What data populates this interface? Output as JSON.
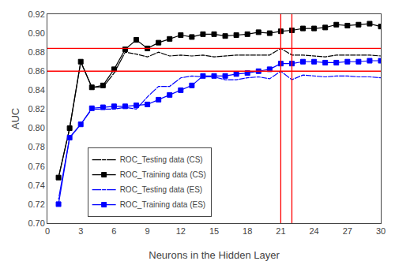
{
  "chart_data": {
    "type": "line",
    "x_label": "Neurons in the Hidden Layer",
    "y_label": "AUC",
    "x": [
      1,
      2,
      3,
      4,
      5,
      6,
      7,
      8,
      9,
      10,
      11,
      12,
      13,
      14,
      15,
      16,
      17,
      18,
      19,
      20,
      21,
      22,
      23,
      24,
      25,
      26,
      27,
      28,
      29,
      30
    ],
    "series": [
      {
        "name": "ROC_Testing data (CS)",
        "color": "#000000",
        "marker": "square-open",
        "line_style": "solid",
        "values": [
          0.748,
          0.8,
          0.87,
          0.843,
          0.843,
          0.858,
          0.88,
          0.878,
          0.875,
          0.88,
          0.876,
          0.877,
          0.876,
          0.877,
          0.875,
          0.876,
          0.877,
          0.877,
          0.877,
          0.877,
          0.884,
          0.877,
          0.877,
          0.876,
          0.875,
          0.877,
          0.877,
          0.877,
          0.877,
          0.876
        ]
      },
      {
        "name": "ROC_Training data (CS)",
        "color": "#000000",
        "marker": "square",
        "line_style": "solid",
        "values": [
          0.748,
          0.8,
          0.87,
          0.843,
          0.845,
          0.862,
          0.883,
          0.893,
          0.884,
          0.89,
          0.894,
          0.898,
          0.896,
          0.899,
          0.899,
          0.897,
          0.898,
          0.899,
          0.901,
          0.9,
          0.902,
          0.903,
          0.905,
          0.905,
          0.906,
          0.909,
          0.908,
          0.909,
          0.91,
          0.907
        ]
      },
      {
        "name": "ROC_Testing data (ES)",
        "color": "#0000FF",
        "marker": "square-open",
        "line_style": "solid",
        "values": [
          0.725,
          0.79,
          0.804,
          0.82,
          0.82,
          0.82,
          0.822,
          0.82,
          0.833,
          0.844,
          0.844,
          0.853,
          0.855,
          0.854,
          0.854,
          0.851,
          0.851,
          0.853,
          0.854,
          0.852,
          0.86,
          0.851,
          0.856,
          0.855,
          0.854,
          0.855,
          0.855,
          0.854,
          0.854,
          0.853
        ]
      },
      {
        "name": "ROC_Training data (ES)",
        "color": "#0000FF",
        "marker": "square",
        "line_style": "solid",
        "values": [
          0.72,
          0.79,
          0.804,
          0.821,
          0.822,
          0.823,
          0.823,
          0.824,
          0.825,
          0.83,
          0.835,
          0.84,
          0.845,
          0.855,
          0.855,
          0.855,
          0.857,
          0.858,
          0.86,
          0.862,
          0.868,
          0.868,
          0.87,
          0.87,
          0.869,
          0.869,
          0.87,
          0.87,
          0.871,
          0.871
        ]
      }
    ],
    "reference_lines": [
      {
        "axis": "y",
        "value": 0.884,
        "color": "#FF0000"
      },
      {
        "axis": "y",
        "value": 0.86,
        "color": "#FF0000"
      },
      {
        "axis": "x",
        "value": 21,
        "color": "#FF0000"
      },
      {
        "axis": "x",
        "value": 22,
        "color": "#FF0000"
      }
    ],
    "xlim": [
      0,
      30
    ],
    "xticks": [
      0,
      3,
      6,
      9,
      12,
      15,
      18,
      21,
      24,
      27,
      30
    ],
    "ylim": [
      0.7,
      0.92
    ],
    "yticks": [
      {
        "value": 0.7,
        "label": "0.70"
      },
      0.72,
      0.74,
      0.76,
      0.78,
      {
        "value": 0.8,
        "label": "0.80"
      },
      0.82,
      0.84,
      0.86,
      0.88,
      {
        "value": 0.9,
        "label": "0.90"
      },
      0.92
    ],
    "grid": false,
    "legend": "lower left"
  }
}
